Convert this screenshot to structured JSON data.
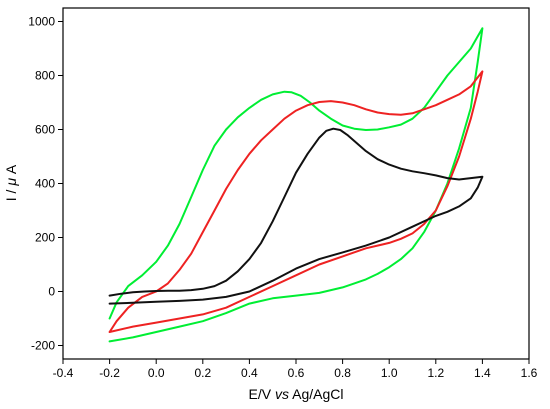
{
  "chart_data": {
    "type": "line",
    "title": "",
    "xlabel_parts": [
      "E/V ",
      "vs",
      " Ag/AgCl"
    ],
    "ylabel_parts": [
      "I /",
      "μ",
      "A"
    ],
    "xlim": [
      -0.4,
      1.6
    ],
    "ylim": [
      -250,
      1050
    ],
    "x_ticks": [
      -0.4,
      -0.2,
      0.0,
      0.2,
      0.4,
      0.6,
      0.8,
      1.0,
      1.2,
      1.4,
      1.6
    ],
    "x_tick_labels": [
      "-0.4",
      "-0.2",
      "0.0",
      "0.2",
      "0.4",
      "0.6",
      "0.8",
      "1.0",
      "1.2",
      "1.4",
      "1.6"
    ],
    "y_ticks": [
      -200,
      0,
      200,
      400,
      600,
      800,
      1000
    ],
    "y_tick_labels": [
      "-200",
      "0",
      "200",
      "400",
      "600",
      "800",
      "1000"
    ],
    "grid": false,
    "legend": "none",
    "series": [
      {
        "color": "#00ee33",
        "points": [
          [
            -0.2,
            -100
          ],
          [
            -0.17,
            -40
          ],
          [
            -0.12,
            20
          ],
          [
            -0.06,
            60
          ],
          [
            0.0,
            110
          ],
          [
            0.05,
            170
          ],
          [
            0.1,
            250
          ],
          [
            0.15,
            350
          ],
          [
            0.2,
            450
          ],
          [
            0.25,
            540
          ],
          [
            0.3,
            600
          ],
          [
            0.35,
            645
          ],
          [
            0.4,
            680
          ],
          [
            0.45,
            710
          ],
          [
            0.5,
            730
          ],
          [
            0.55,
            740
          ],
          [
            0.58,
            738
          ],
          [
            0.62,
            725
          ],
          [
            0.66,
            700
          ],
          [
            0.7,
            670
          ],
          [
            0.75,
            640
          ],
          [
            0.8,
            615
          ],
          [
            0.85,
            603
          ],
          [
            0.9,
            598
          ],
          [
            0.95,
            600
          ],
          [
            1.0,
            608
          ],
          [
            1.05,
            618
          ],
          [
            1.1,
            640
          ],
          [
            1.15,
            680
          ],
          [
            1.2,
            740
          ],
          [
            1.25,
            800
          ],
          [
            1.3,
            850
          ],
          [
            1.35,
            900
          ],
          [
            1.38,
            945
          ],
          [
            1.4,
            975
          ],
          [
            1.38,
            850
          ],
          [
            1.35,
            680
          ],
          [
            1.3,
            530
          ],
          [
            1.25,
            400
          ],
          [
            1.2,
            300
          ],
          [
            1.15,
            220
          ],
          [
            1.1,
            160
          ],
          [
            1.05,
            120
          ],
          [
            1.0,
            90
          ],
          [
            0.95,
            65
          ],
          [
            0.9,
            45
          ],
          [
            0.85,
            30
          ],
          [
            0.8,
            15
          ],
          [
            0.7,
            -5
          ],
          [
            0.6,
            -15
          ],
          [
            0.5,
            -25
          ],
          [
            0.4,
            -45
          ],
          [
            0.3,
            -80
          ],
          [
            0.2,
            -110
          ],
          [
            0.1,
            -130
          ],
          [
            0.0,
            -150
          ],
          [
            -0.1,
            -170
          ],
          [
            -0.2,
            -185
          ]
        ]
      },
      {
        "color": "#ee2222",
        "points": [
          [
            -0.2,
            -150
          ],
          [
            -0.17,
            -110
          ],
          [
            -0.12,
            -60
          ],
          [
            -0.06,
            -20
          ],
          [
            0.0,
            0
          ],
          [
            0.05,
            30
          ],
          [
            0.1,
            80
          ],
          [
            0.15,
            140
          ],
          [
            0.2,
            220
          ],
          [
            0.25,
            300
          ],
          [
            0.3,
            380
          ],
          [
            0.35,
            450
          ],
          [
            0.4,
            510
          ],
          [
            0.45,
            560
          ],
          [
            0.5,
            600
          ],
          [
            0.55,
            640
          ],
          [
            0.6,
            670
          ],
          [
            0.65,
            690
          ],
          [
            0.7,
            702
          ],
          [
            0.75,
            705
          ],
          [
            0.8,
            700
          ],
          [
            0.85,
            690
          ],
          [
            0.9,
            675
          ],
          [
            0.95,
            663
          ],
          [
            1.0,
            657
          ],
          [
            1.05,
            655
          ],
          [
            1.1,
            660
          ],
          [
            1.15,
            675
          ],
          [
            1.2,
            690
          ],
          [
            1.25,
            710
          ],
          [
            1.3,
            730
          ],
          [
            1.35,
            760
          ],
          [
            1.4,
            815
          ],
          [
            1.38,
            740
          ],
          [
            1.35,
            640
          ],
          [
            1.3,
            500
          ],
          [
            1.25,
            390
          ],
          [
            1.2,
            300
          ],
          [
            1.15,
            250
          ],
          [
            1.1,
            215
          ],
          [
            1.05,
            195
          ],
          [
            1.0,
            180
          ],
          [
            0.9,
            160
          ],
          [
            0.8,
            130
          ],
          [
            0.7,
            100
          ],
          [
            0.6,
            60
          ],
          [
            0.5,
            20
          ],
          [
            0.4,
            -20
          ],
          [
            0.3,
            -60
          ],
          [
            0.2,
            -85
          ],
          [
            0.1,
            -100
          ],
          [
            0.0,
            -115
          ],
          [
            -0.1,
            -130
          ],
          [
            -0.2,
            -150
          ]
        ]
      },
      {
        "color": "#111111",
        "points": [
          [
            -0.2,
            -15
          ],
          [
            -0.15,
            -8
          ],
          [
            -0.1,
            -3
          ],
          [
            -0.05,
            0
          ],
          [
            0.0,
            2
          ],
          [
            0.05,
            3
          ],
          [
            0.1,
            3
          ],
          [
            0.15,
            5
          ],
          [
            0.2,
            10
          ],
          [
            0.25,
            20
          ],
          [
            0.3,
            40
          ],
          [
            0.35,
            75
          ],
          [
            0.4,
            120
          ],
          [
            0.45,
            180
          ],
          [
            0.5,
            260
          ],
          [
            0.55,
            350
          ],
          [
            0.6,
            440
          ],
          [
            0.65,
            510
          ],
          [
            0.7,
            570
          ],
          [
            0.73,
            595
          ],
          [
            0.76,
            603
          ],
          [
            0.79,
            598
          ],
          [
            0.82,
            580
          ],
          [
            0.86,
            550
          ],
          [
            0.9,
            520
          ],
          [
            0.95,
            490
          ],
          [
            1.0,
            470
          ],
          [
            1.05,
            455
          ],
          [
            1.1,
            445
          ],
          [
            1.15,
            438
          ],
          [
            1.2,
            430
          ],
          [
            1.25,
            420
          ],
          [
            1.3,
            415
          ],
          [
            1.35,
            420
          ],
          [
            1.4,
            425
          ],
          [
            1.38,
            385
          ],
          [
            1.35,
            345
          ],
          [
            1.3,
            315
          ],
          [
            1.25,
            295
          ],
          [
            1.2,
            280
          ],
          [
            1.1,
            240
          ],
          [
            1.0,
            200
          ],
          [
            0.9,
            170
          ],
          [
            0.8,
            145
          ],
          [
            0.7,
            120
          ],
          [
            0.6,
            85
          ],
          [
            0.5,
            40
          ],
          [
            0.4,
            0
          ],
          [
            0.3,
            -20
          ],
          [
            0.2,
            -30
          ],
          [
            0.1,
            -35
          ],
          [
            0.0,
            -38
          ],
          [
            -0.1,
            -42
          ],
          [
            -0.2,
            -45
          ]
        ]
      }
    ]
  }
}
